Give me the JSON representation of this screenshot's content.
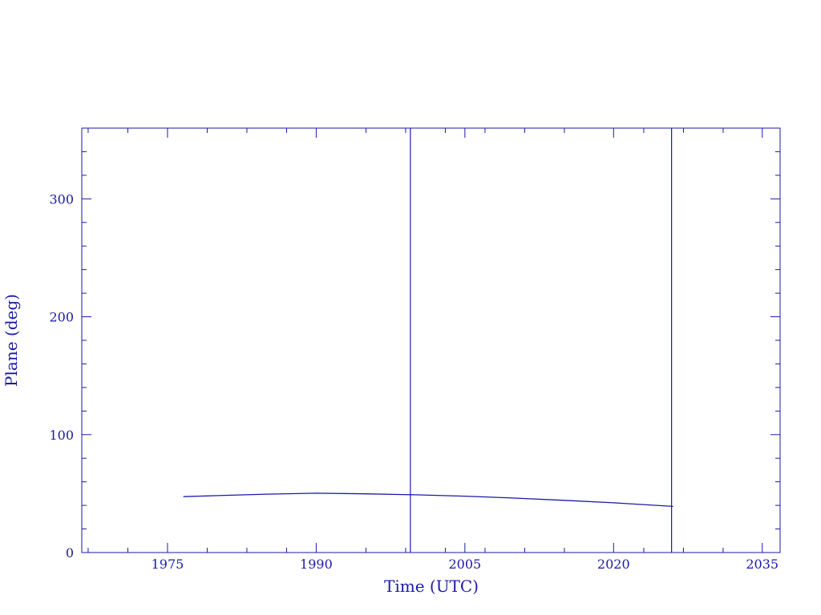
{
  "chart_data": {
    "type": "line",
    "title": "",
    "xlabel": "Time (UTC)",
    "ylabel": "Plane (deg)",
    "xlim": [
      1966.35,
      2036.8
    ],
    "ylim": [
      0,
      360
    ],
    "xticks": [
      1975,
      1990,
      2005,
      2020,
      2035
    ],
    "yticks": [
      0,
      100,
      200,
      300
    ],
    "grid": false,
    "color": "#1a1aa6",
    "vertical_lines": [
      1999.5,
      2025.85
    ],
    "series": [
      {
        "x": [
          1976.6,
          1980,
          1985,
          1990,
          1995,
          2000,
          2005,
          2010,
          2015,
          2020,
          2026
        ],
        "y": [
          47.4,
          48.3,
          49.5,
          50.3,
          49.8,
          49.0,
          47.8,
          46.2,
          44.3,
          42.2,
          39.1
        ]
      }
    ]
  }
}
